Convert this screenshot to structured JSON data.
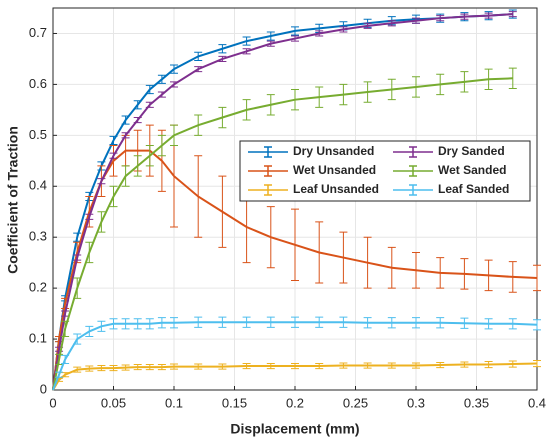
{
  "chart_data": {
    "type": "line",
    "x_label": "Displacement (mm)",
    "y_label": "Coefficient of Traction",
    "x": [
      0,
      0.005,
      0.01,
      0.02,
      0.03,
      0.04,
      0.05,
      0.06,
      0.07,
      0.08,
      0.09,
      0.1,
      0.12,
      0.14,
      0.16,
      0.18,
      0.2,
      0.22,
      0.24,
      0.26,
      0.28,
      0.3,
      0.32,
      0.34,
      0.36,
      0.38,
      0.4
    ],
    "series": [
      {
        "name": "Dry Unsanded",
        "color": "#0072BD",
        "values": [
          0,
          0.1,
          0.18,
          0.3,
          0.38,
          0.44,
          0.49,
          0.53,
          0.56,
          0.59,
          0.61,
          0.63,
          0.655,
          0.67,
          0.685,
          0.695,
          0.705,
          0.71,
          0.715,
          0.72,
          0.725,
          0.728,
          0.73,
          0.733,
          0.735,
          0.738,
          null
        ],
        "errors": [
          0,
          0.005,
          0.005,
          0.008,
          0.008,
          0.008,
          0.008,
          0.008,
          0.008,
          0.008,
          0.008,
          0.008,
          0.008,
          0.008,
          0.008,
          0.008,
          0.008,
          0.008,
          0.008,
          0.008,
          0.008,
          0.008,
          0.008,
          0.008,
          0.008,
          0.008,
          null
        ]
      },
      {
        "name": "Wet Unsanded",
        "color": "#D95319",
        "values": [
          0,
          0.1,
          0.17,
          0.27,
          0.35,
          0.41,
          0.45,
          0.47,
          0.47,
          0.47,
          0.45,
          0.42,
          0.38,
          0.35,
          0.32,
          0.3,
          0.285,
          0.27,
          0.26,
          0.25,
          0.24,
          0.235,
          0.23,
          0.228,
          0.225,
          0.222,
          0.22
        ],
        "errors": [
          0,
          0.005,
          0.01,
          0.02,
          0.03,
          0.03,
          0.03,
          0.03,
          0.04,
          0.05,
          0.06,
          0.1,
          0.08,
          0.07,
          0.07,
          0.06,
          0.07,
          0.06,
          0.05,
          0.05,
          0.04,
          0.035,
          0.03,
          0.03,
          0.03,
          0.03,
          0.025
        ]
      },
      {
        "name": "Leaf Unsanded",
        "color": "#EDB120",
        "values": [
          0,
          0.02,
          0.03,
          0.04,
          0.042,
          0.043,
          0.043,
          0.044,
          0.045,
          0.045,
          0.045,
          0.046,
          0.046,
          0.046,
          0.047,
          0.047,
          0.047,
          0.047,
          0.048,
          0.048,
          0.048,
          0.048,
          0.049,
          0.05,
          0.05,
          0.051,
          0.052
        ],
        "errors": [
          0,
          0.003,
          0.004,
          0.005,
          0.005,
          0.005,
          0.005,
          0.005,
          0.005,
          0.005,
          0.005,
          0.005,
          0.005,
          0.005,
          0.005,
          0.005,
          0.005,
          0.005,
          0.005,
          0.005,
          0.005,
          0.005,
          0.005,
          0.005,
          0.006,
          0.006,
          0.006
        ]
      },
      {
        "name": "Dry Sanded",
        "color": "#7E2F8E",
        "values": [
          0,
          0.08,
          0.15,
          0.26,
          0.34,
          0.41,
          0.46,
          0.5,
          0.53,
          0.56,
          0.58,
          0.6,
          0.63,
          0.65,
          0.665,
          0.68,
          0.69,
          0.7,
          0.708,
          0.715,
          0.72,
          0.725,
          0.73,
          0.733,
          0.735,
          0.738,
          null
        ],
        "errors": [
          0,
          0.004,
          0.005,
          0.005,
          0.005,
          0.005,
          0.005,
          0.005,
          0.005,
          0.005,
          0.005,
          0.005,
          0.005,
          0.005,
          0.005,
          0.005,
          0.005,
          0.005,
          0.005,
          0.005,
          0.005,
          0.005,
          0.005,
          0.005,
          0.005,
          0.005,
          null
        ]
      },
      {
        "name": "Wet Sanded",
        "color": "#77AC30",
        "values": [
          0,
          0.06,
          0.12,
          0.2,
          0.27,
          0.33,
          0.38,
          0.42,
          0.44,
          0.46,
          0.48,
          0.5,
          0.52,
          0.535,
          0.55,
          0.56,
          0.57,
          0.575,
          0.58,
          0.585,
          0.59,
          0.595,
          0.6,
          0.605,
          0.61,
          0.612,
          null
        ],
        "errors": [
          0,
          0.01,
          0.015,
          0.02,
          0.02,
          0.02,
          0.02,
          0.02,
          0.02,
          0.02,
          0.02,
          0.02,
          0.02,
          0.02,
          0.02,
          0.02,
          0.02,
          0.02,
          0.02,
          0.02,
          0.02,
          0.02,
          0.02,
          0.02,
          0.02,
          0.02,
          null
        ]
      },
      {
        "name": "Leaf Sanded",
        "color": "#4DBEEE",
        "values": [
          0,
          0.03,
          0.06,
          0.1,
          0.115,
          0.125,
          0.13,
          0.13,
          0.13,
          0.13,
          0.132,
          0.132,
          0.133,
          0.133,
          0.133,
          0.133,
          0.133,
          0.133,
          0.133,
          0.132,
          0.132,
          0.132,
          0.132,
          0.131,
          0.13,
          0.13,
          0.128
        ],
        "errors": [
          0,
          0.005,
          0.008,
          0.01,
          0.01,
          0.01,
          0.01,
          0.01,
          0.01,
          0.01,
          0.01,
          0.01,
          0.01,
          0.01,
          0.01,
          0.01,
          0.01,
          0.01,
          0.01,
          0.01,
          0.01,
          0.01,
          0.01,
          0.01,
          0.01,
          0.01,
          0.01
        ]
      }
    ],
    "xlim": [
      0,
      0.4
    ],
    "xticks": [
      0,
      0.05,
      0.1,
      0.15,
      0.2,
      0.25,
      0.3,
      0.35,
      0.4
    ],
    "ylim": [
      0,
      0.75
    ],
    "yticks": [
      0,
      0.1,
      0.2,
      0.3,
      0.4,
      0.5,
      0.6,
      0.7
    ],
    "grid": true,
    "legend_position": "right"
  }
}
